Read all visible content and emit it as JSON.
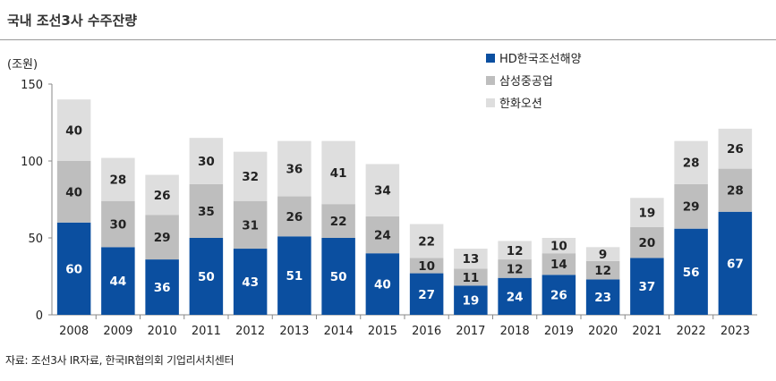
{
  "title": "국내 조선3사 수주잔량",
  "source": "자료: 조선3사 IR자료, 한국IR협의회 기업리서치센터",
  "chart_data": {
    "type": "bar",
    "stacked": true,
    "unit_label": "(조원)",
    "ylim": [
      0,
      150
    ],
    "yticks": [
      0,
      50,
      100,
      150
    ],
    "legend_position": "top-right",
    "categories": [
      "2008",
      "2009",
      "2010",
      "2011",
      "2012",
      "2013",
      "2014",
      "2015",
      "2016",
      "2017",
      "2018",
      "2019",
      "2020",
      "2021",
      "2022",
      "2023"
    ],
    "series": [
      {
        "name": "HD한국조선해양",
        "color": "#0B4FA0",
        "label_color": "#ffffff",
        "values": [
          60,
          44,
          36,
          50,
          43,
          51,
          50,
          40,
          27,
          19,
          24,
          26,
          23,
          37,
          56,
          67
        ]
      },
      {
        "name": "삼성중공업",
        "color": "#BEBEBE",
        "label_color": "#222222",
        "values": [
          40,
          30,
          29,
          35,
          31,
          26,
          22,
          24,
          10,
          11,
          12,
          14,
          12,
          20,
          29,
          28
        ]
      },
      {
        "name": "한화오션",
        "color": "#DEDEDE",
        "label_color": "#222222",
        "values": [
          40,
          28,
          26,
          30,
          32,
          36,
          41,
          34,
          22,
          13,
          12,
          10,
          9,
          19,
          28,
          26
        ]
      }
    ]
  }
}
